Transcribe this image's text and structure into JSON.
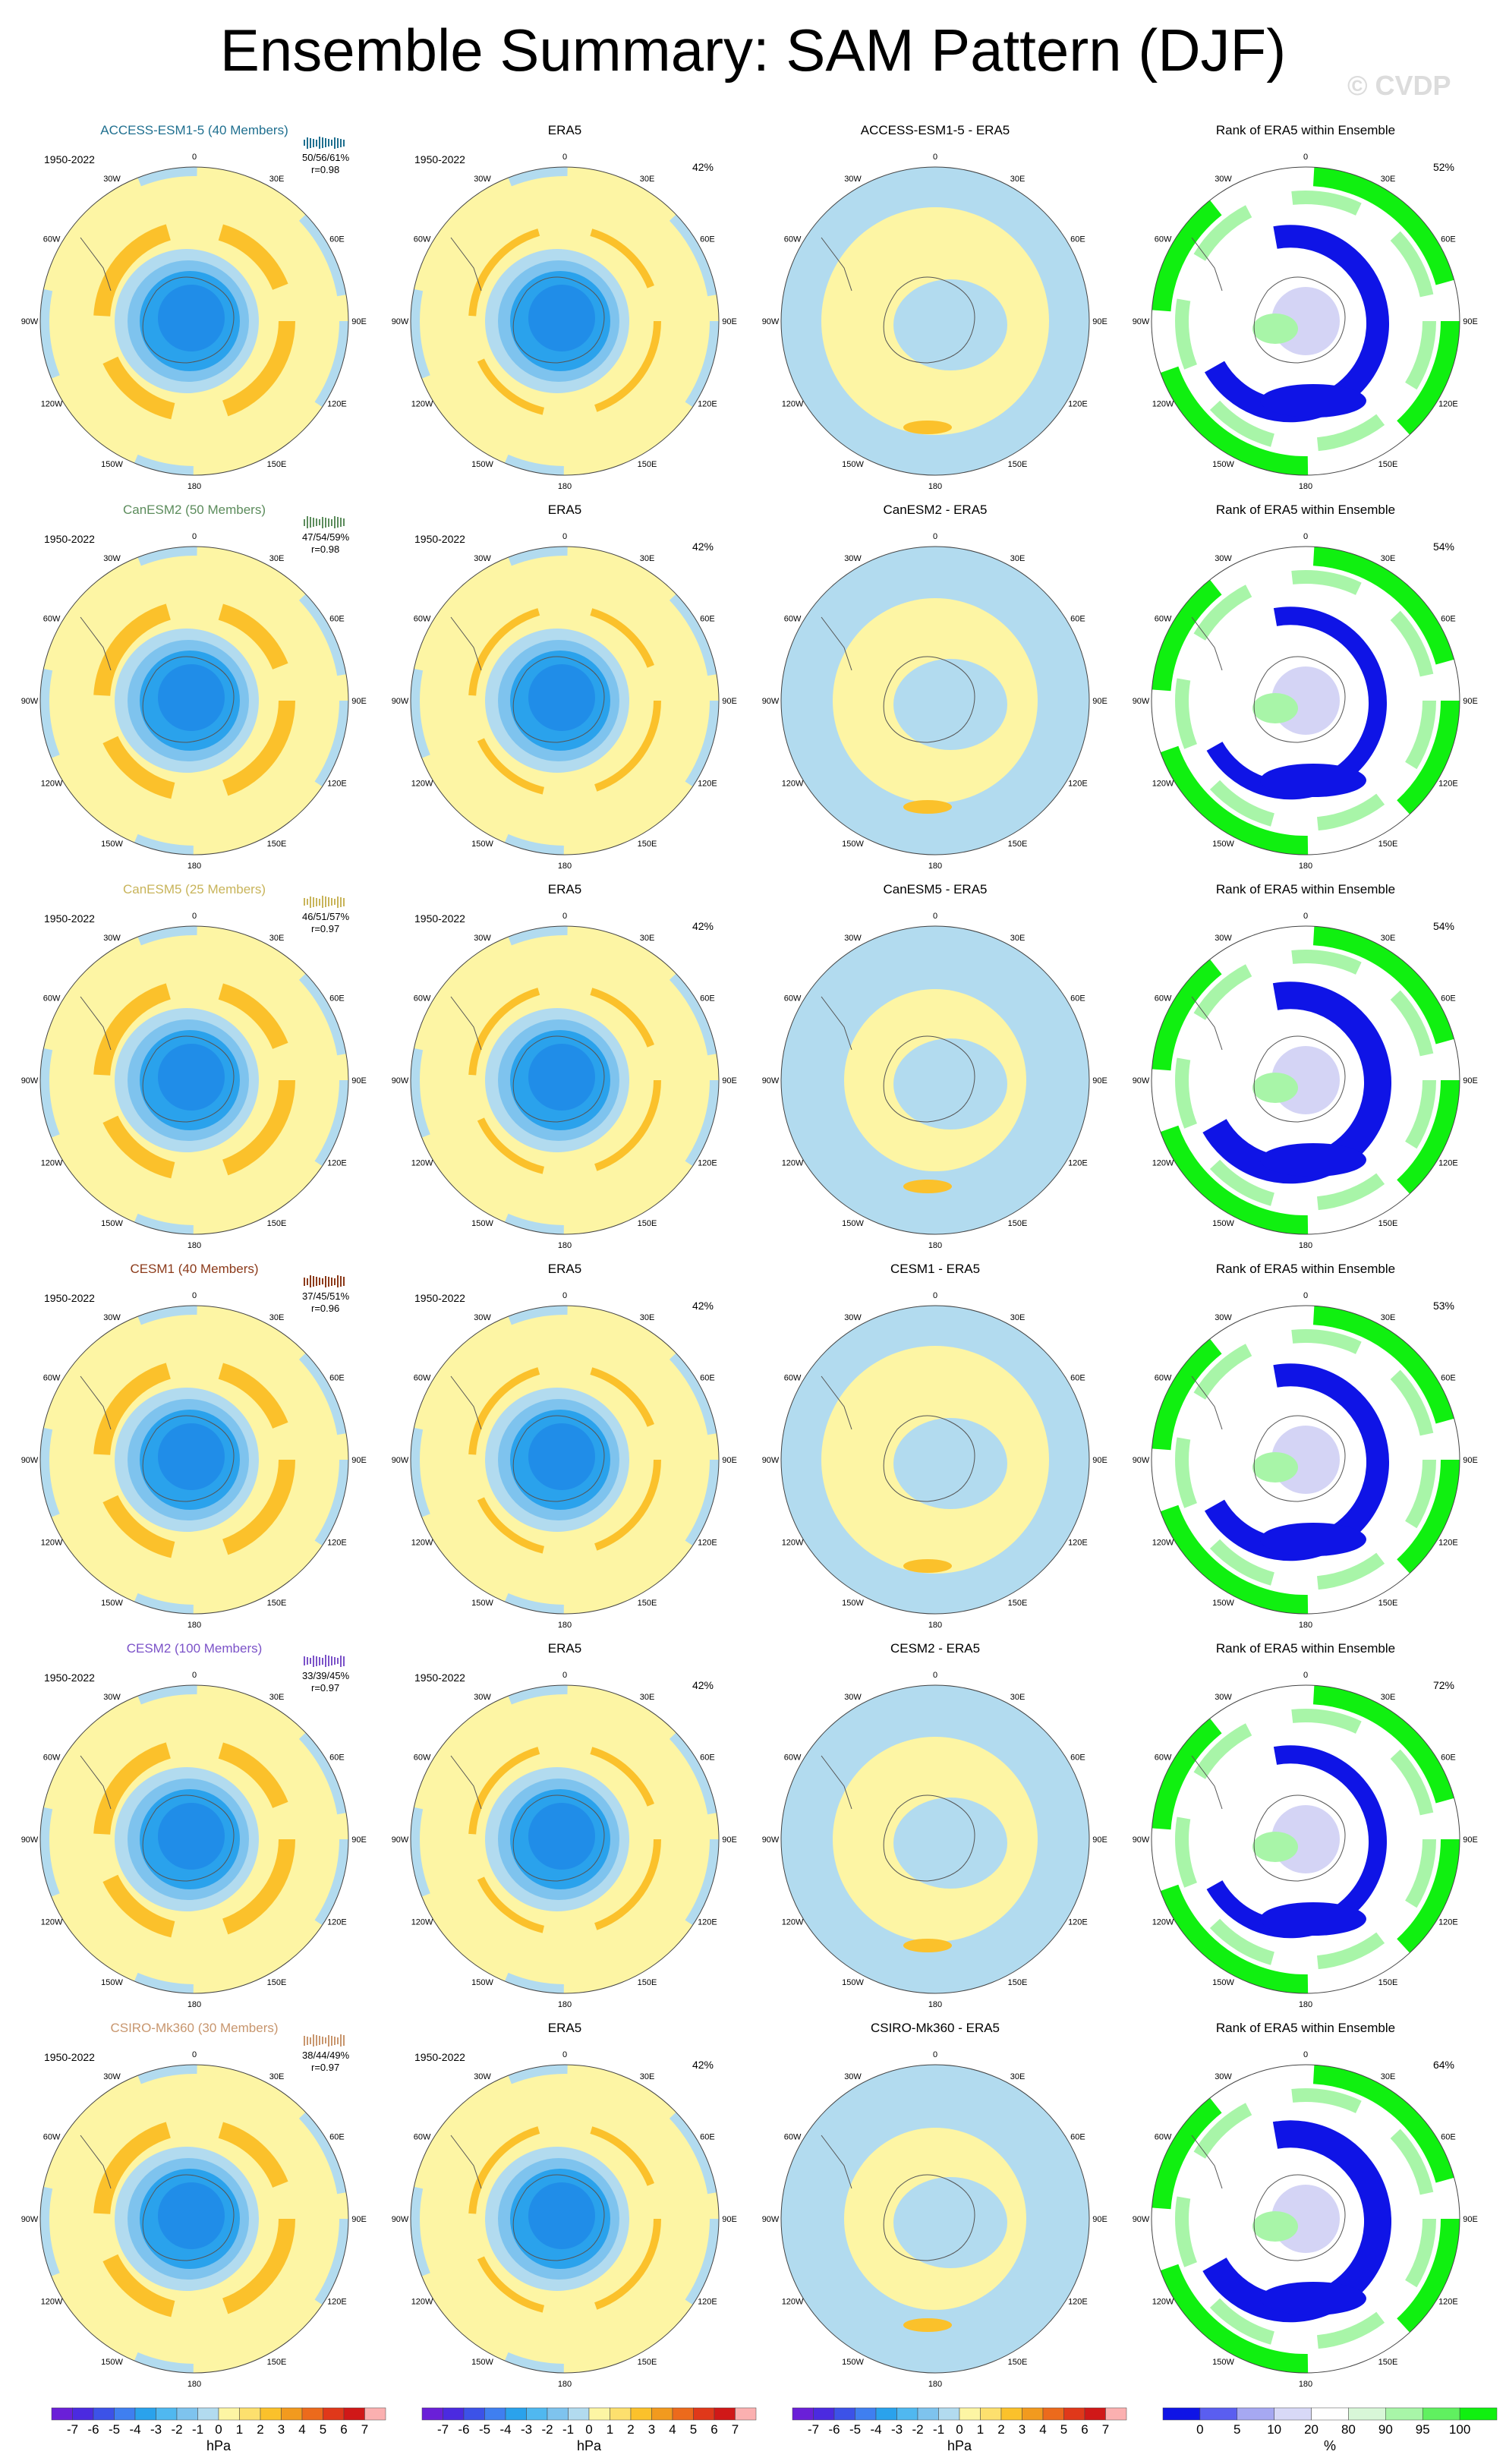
{
  "title": "Ensemble Summary: SAM Pattern (DJF)",
  "copyright": "© CVDP",
  "period": "1950-2022",
  "lon_labels": [
    "0",
    "30E",
    "60E",
    "90E",
    "120E",
    "150E",
    "180",
    "150W",
    "120W",
    "90W",
    "60W",
    "30W"
  ],
  "colors": {
    "fill": "#fdf5a4",
    "light_blue": "#b2dbef",
    "orange": "#fbc12b",
    "dark_orange": "#f29a1e",
    "blue1": "#7ec3ee",
    "blue2": "#2aa2ec",
    "blue3": "#1a7fe6",
    "rank_blue": "#0f14e6",
    "rank_green": "#10f010",
    "rank_light_green": "#a8f5a8",
    "rank_light_blue": "#c9c9f2"
  },
  "rows": [
    {
      "model": "ACCESS-ESM1-5 (40 Members)",
      "model_color": "#1f6f8f",
      "stats": "50/56/61%",
      "r": "r=0.98",
      "diff_title": "ACCESS-ESM1-5 - ERA5",
      "rank_pct": "52%"
    },
    {
      "model": "CanESM2 (50 Members)",
      "model_color": "#5c8c5c",
      "stats": "47/54/59%",
      "r": "r=0.98",
      "diff_title": "CanESM2 - ERA5",
      "rank_pct": "54%"
    },
    {
      "model": "CanESM5 (25 Members)",
      "model_color": "#c8b45a",
      "stats": "46/51/57%",
      "r": "r=0.97",
      "diff_title": "CanESM5 - ERA5",
      "rank_pct": "54%"
    },
    {
      "model": "CESM1 (40 Members)",
      "model_color": "#8b3a1a",
      "stats": "37/45/51%",
      "r": "r=0.96",
      "diff_title": "CESM1 - ERA5",
      "rank_pct": "53%"
    },
    {
      "model": "CESM2 (100 Members)",
      "model_color": "#7b52c8",
      "stats": "33/39/45%",
      "r": "r=0.97",
      "diff_title": "CESM2 - ERA5",
      "rank_pct": "72%"
    },
    {
      "model": "CSIRO-Mk360 (30 Members)",
      "model_color": "#c8966e",
      "stats": "38/44/49%",
      "r": "r=0.97",
      "diff_title": "CSIRO-Mk360 - ERA5",
      "rank_pct": "64%"
    }
  ],
  "era5_title": "ERA5",
  "era5_pct": "42%",
  "rank_title": "Rank of ERA5 within Ensemble",
  "colorbar_hpa": {
    "labels": [
      "-7",
      "-6",
      "-5",
      "-4",
      "-3",
      "-2",
      "-1",
      "0",
      "1",
      "2",
      "3",
      "4",
      "5",
      "6",
      "7"
    ],
    "unit": "hPa",
    "colors": [
      "#6a1fd8",
      "#4b2ae0",
      "#3c52e8",
      "#3f7ff0",
      "#2aa2ec",
      "#50b8f0",
      "#7ec3ee",
      "#b2dbef",
      "#fdf5a4",
      "#fde06e",
      "#fbc12b",
      "#f29a1e",
      "#ec6a1c",
      "#e0381a",
      "#d01818",
      "#fbb0b0"
    ]
  },
  "colorbar_rank": {
    "labels": [
      "0",
      "5",
      "10",
      "20",
      "80",
      "90",
      "95",
      "100"
    ],
    "unit": "%",
    "colors": [
      "#0f14e6",
      "#5a5ef0",
      "#a6a8f2",
      "#d8d9f7",
      "#ffffff",
      "#d8f7d8",
      "#a8f5a8",
      "#60f060",
      "#10f010"
    ]
  }
}
